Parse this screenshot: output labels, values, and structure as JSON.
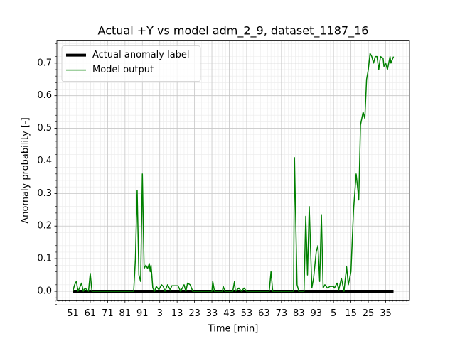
{
  "chart_data": {
    "type": "line",
    "title": "Actual +Y vs model adm_2_9, dataset_1187_16",
    "xlabel": "Time [min]",
    "ylabel": "Anomaly probability [-]",
    "xlim": [
      -9.2,
      193.7
    ],
    "ylim": [
      -0.027,
      0.768
    ],
    "xticks": [
      {
        "value": 0,
        "label": "51"
      },
      {
        "value": 10,
        "label": "61"
      },
      {
        "value": 20,
        "label": "71"
      },
      {
        "value": 30,
        "label": "81"
      },
      {
        "value": 40,
        "label": "91"
      },
      {
        "value": 50,
        "label": "3"
      },
      {
        "value": 60,
        "label": "13"
      },
      {
        "value": 70,
        "label": "23"
      },
      {
        "value": 80,
        "label": "33"
      },
      {
        "value": 90,
        "label": "43"
      },
      {
        "value": 100,
        "label": "53"
      },
      {
        "value": 110,
        "label": "63"
      },
      {
        "value": 120,
        "label": "73"
      },
      {
        "value": 130,
        "label": "83"
      },
      {
        "value": 140,
        "label": "93"
      },
      {
        "value": 150,
        "label": "5"
      },
      {
        "value": 160,
        "label": "15"
      },
      {
        "value": 170,
        "label": "25"
      },
      {
        "value": 180,
        "label": "35"
      }
    ],
    "yticks": [
      {
        "value": 0,
        "label": "0.0"
      },
      0.1,
      0.2,
      0.3,
      0.4,
      0.5,
      0.6,
      0.7
    ],
    "grid": true,
    "minor_grid": true,
    "legend": "upper left",
    "series": [
      {
        "name": "Actual anomaly label",
        "color": "#000000",
        "width": 4,
        "x": [
          0,
          184.5
        ],
        "values": [
          0,
          0
        ]
      },
      {
        "name": "Model output",
        "color": "#008000",
        "width": 1.5,
        "x": [
          0,
          1,
          2,
          3,
          5,
          6,
          7,
          9,
          10,
          11,
          35,
          36,
          37,
          38,
          39,
          40,
          41,
          42,
          43,
          44,
          44.5,
          45,
          46,
          47,
          48,
          49.5,
          51,
          52,
          53,
          54.5,
          56,
          57,
          58.5,
          60.5,
          62,
          64,
          65,
          66,
          67.5,
          69,
          80,
          80.5,
          81.5,
          86,
          86.5,
          87.5,
          92,
          93,
          93.5,
          95.5,
          97,
          98.5,
          100,
          113,
          114,
          115,
          127,
          127.5,
          129,
          130,
          133,
          134,
          135,
          136,
          137.5,
          138.5,
          140,
          141,
          142,
          143,
          144,
          145,
          146.5,
          148,
          150,
          150.5,
          152,
          153,
          154.5,
          156,
          157.5,
          158.5,
          160,
          161.5,
          163,
          164,
          164.5,
          165.5,
          167,
          168,
          169,
          170,
          171,
          172,
          173,
          174,
          175,
          176,
          177,
          178.5,
          179,
          180,
          181,
          182.5,
          183,
          184.5
        ],
        "values": [
          0,
          0.02,
          0.03,
          0,
          0.025,
          0,
          0.01,
          0,
          0.055,
          0,
          0,
          0.1,
          0.31,
          0.05,
          0.03,
          0.36,
          0.07,
          0.08,
          0.07,
          0.085,
          0.06,
          0.08,
          0.01,
          0,
          0.015,
          0.005,
          0.02,
          0.015,
          0,
          0.02,
          0.005,
          0.017,
          0.017,
          0.017,
          0,
          0.02,
          0,
          0.025,
          0.02,
          0,
          0,
          0.03,
          0,
          0,
          0.015,
          0,
          0,
          0.03,
          0,
          0.01,
          0,
          0.01,
          0,
          0,
          0.06,
          0,
          0,
          0.41,
          0.02,
          0,
          0,
          0.23,
          0.05,
          0.26,
          0.01,
          0.04,
          0.12,
          0.14,
          0.03,
          0.235,
          0.01,
          0.02,
          0.01,
          0.015,
          0.015,
          0.01,
          0.025,
          0.005,
          0.04,
          0,
          0.075,
          0.02,
          0.06,
          0.25,
          0.36,
          0.31,
          0.28,
          0.51,
          0.55,
          0.53,
          0.65,
          0.68,
          0.73,
          0.72,
          0.7,
          0.72,
          0.72,
          0.68,
          0.72,
          0.715,
          0.69,
          0.7,
          0.68,
          0.72,
          0.7,
          0.72
        ]
      }
    ]
  }
}
